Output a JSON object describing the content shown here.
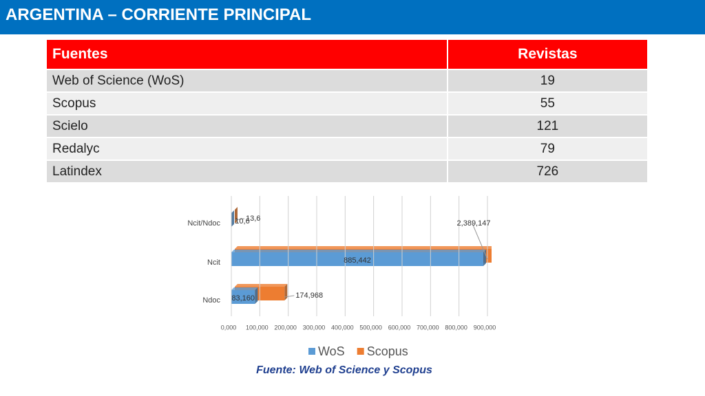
{
  "header": {
    "title": "ARGENTINA – CORRIENTE PRINCIPAL"
  },
  "table": {
    "columns": [
      "Fuentes",
      "Revistas"
    ],
    "rows": [
      [
        "Web of Science (WoS)",
        "19"
      ],
      [
        "Scopus",
        "55"
      ],
      [
        "Scielo",
        "121"
      ],
      [
        "Redalyc",
        "79"
      ],
      [
        "Latindex",
        "726"
      ]
    ]
  },
  "chart_data": {
    "type": "hbar",
    "categories": [
      "Ndoc",
      "Ncit",
      "Ncit/Ndoc"
    ],
    "series": [
      {
        "name": "WoS",
        "color": "#5b9bd5",
        "values": [
          83160,
          885442,
          10.6
        ],
        "value_labels": [
          "83,160",
          "885,442",
          "10,6"
        ]
      },
      {
        "name": "Scopus",
        "color": "#ed7d31",
        "values": [
          174968,
          2389147,
          13.6
        ],
        "value_labels": [
          "174,968",
          "2,389,147",
          "13,6"
        ]
      }
    ],
    "xlim": [
      0,
      900000
    ],
    "xticks": [
      {
        "value": 0,
        "label": "0,000"
      },
      {
        "value": 100000,
        "label": "100,000"
      },
      {
        "value": 200000,
        "label": "200,000"
      },
      {
        "value": 300000,
        "label": "300,000"
      },
      {
        "value": 400000,
        "label": "400,000"
      },
      {
        "value": 500000,
        "label": "500,000"
      },
      {
        "value": 600000,
        "label": "600,000"
      },
      {
        "value": 700000,
        "label": "700,000"
      },
      {
        "value": 800000,
        "label": "800,000"
      },
      {
        "value": 900000,
        "label": "900,000"
      }
    ],
    "grid": true,
    "legend": "bottom"
  },
  "source": "Fuente: Web of Science y Scopus"
}
